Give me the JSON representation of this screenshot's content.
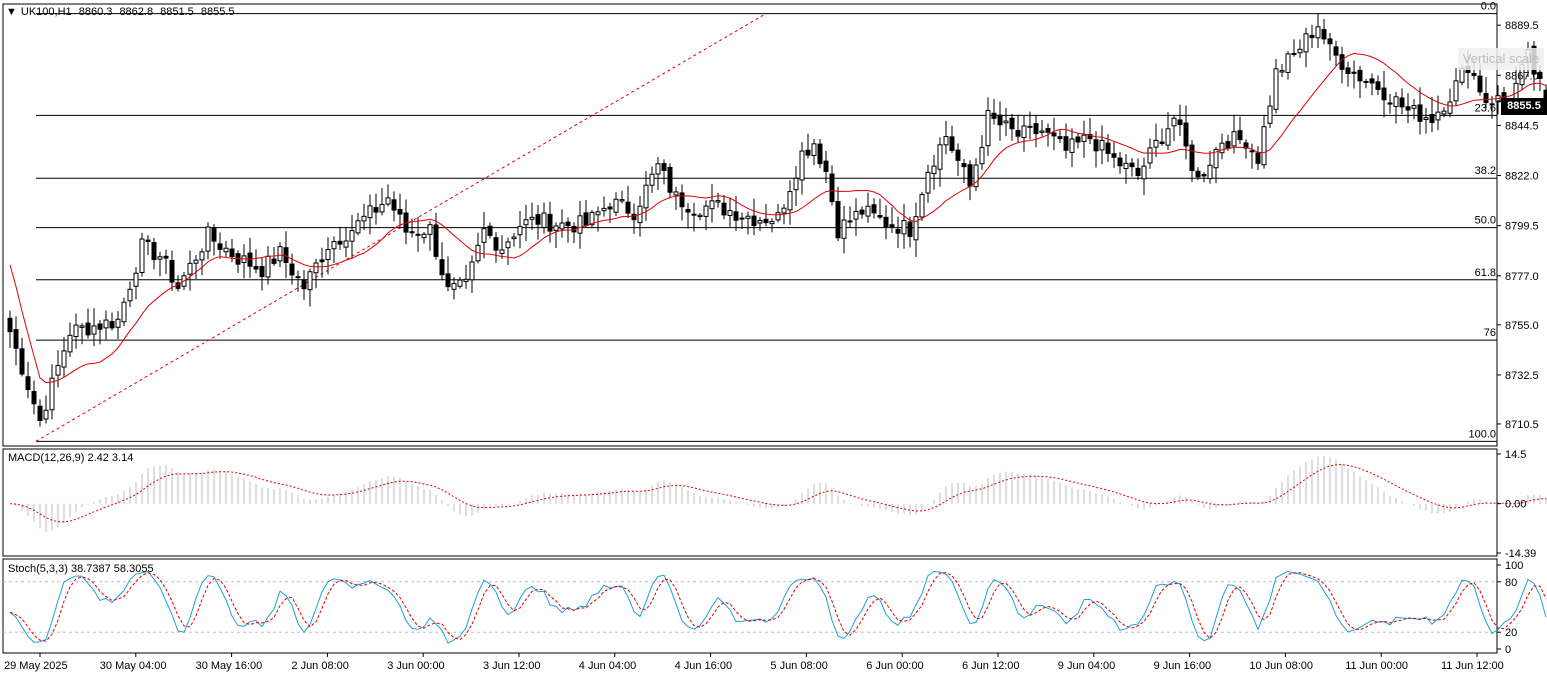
{
  "main": {
    "symbol": "UK100,H1",
    "ohlc": [
      "8860.3",
      "8862.8",
      "8851.5",
      "8855.5"
    ],
    "last_price": "8855.5",
    "vertical_scale_tip": "Vertical scale",
    "price_axis": [
      "8889.5",
      "8867.0",
      "8844.5",
      "8822.0",
      "8799.5",
      "8777.0",
      "8755.0",
      "8732.5",
      "8710.5"
    ],
    "fib_levels": [
      {
        "label": "0.0",
        "price": 8894.7
      },
      {
        "label": "23.6",
        "price": 8849.0
      },
      {
        "label": "38.2",
        "price": 8820.8
      },
      {
        "label": "50.0",
        "price": 8798.6
      },
      {
        "label": "61.8",
        "price": 8775.2
      },
      {
        "label": "76",
        "price": 8748.1
      },
      {
        "label": "100.0",
        "price": 8702.7
      }
    ]
  },
  "macd": {
    "label": "MACD(12,26,9) 2.42 3.14",
    "axis": [
      "14.5",
      "0.00",
      "-14.39"
    ]
  },
  "stoch": {
    "label": "Stoch(5,3,3) 38.7387 58.3055",
    "axis": [
      "100",
      "80",
      "20",
      "0"
    ]
  },
  "time_axis": [
    "29 May 2025",
    "30 May 04:00",
    "30 May 16:00",
    "2 Jun 08:00",
    "3 Jun 00:00",
    "3 Jun 12:00",
    "4 Jun 04:00",
    "4 Jun 16:00",
    "5 Jun 08:00",
    "6 Jun 00:00",
    "6 Jun 12:00",
    "9 Jun 04:00",
    "9 Jun 16:00",
    "10 Jun 08:00",
    "11 Jun 00:00",
    "11 Jun 12:00"
  ],
  "colors": {
    "ma": "#e00000",
    "signal": "#e00000",
    "histogram": "#bdbdbd",
    "stoch_main": "#1ea0d8",
    "stoch_signal": "#e00000",
    "grid": "#000000"
  },
  "chart_data": {
    "type": "candlestick",
    "timeframe": "H1",
    "anchors": [
      {
        "t": 0,
        "p": 8752
      },
      {
        "t": 5,
        "p": 8712
      },
      {
        "t": 10,
        "p": 8752
      },
      {
        "t": 18,
        "p": 8757
      },
      {
        "t": 22,
        "p": 8790
      },
      {
        "t": 25,
        "p": 8786
      },
      {
        "t": 28,
        "p": 8772
      },
      {
        "t": 33,
        "p": 8795
      },
      {
        "t": 38,
        "p": 8785
      },
      {
        "t": 42,
        "p": 8780
      },
      {
        "t": 45,
        "p": 8787
      },
      {
        "t": 49,
        "p": 8772
      },
      {
        "t": 53,
        "p": 8791
      },
      {
        "t": 57,
        "p": 8798
      },
      {
        "t": 61,
        "p": 8807
      },
      {
        "t": 63,
        "p": 8812
      },
      {
        "t": 66,
        "p": 8797
      },
      {
        "t": 70,
        "p": 8798
      },
      {
        "t": 73,
        "p": 8770
      },
      {
        "t": 76,
        "p": 8772
      },
      {
        "t": 79,
        "p": 8797
      },
      {
        "t": 82,
        "p": 8790
      },
      {
        "t": 85,
        "p": 8800
      },
      {
        "t": 88,
        "p": 8802
      },
      {
        "t": 92,
        "p": 8800
      },
      {
        "t": 96,
        "p": 8800
      },
      {
        "t": 100,
        "p": 8810
      },
      {
        "t": 104,
        "p": 8806
      },
      {
        "t": 108,
        "p": 8826
      },
      {
        "t": 111,
        "p": 8812
      },
      {
        "t": 114,
        "p": 8808
      },
      {
        "t": 118,
        "p": 8808
      },
      {
        "t": 124,
        "p": 8803
      },
      {
        "t": 128,
        "p": 8803
      },
      {
        "t": 132,
        "p": 8832
      },
      {
        "t": 134,
        "p": 8837
      },
      {
        "t": 136,
        "p": 8824
      },
      {
        "t": 138,
        "p": 8798
      },
      {
        "t": 142,
        "p": 8806
      },
      {
        "t": 146,
        "p": 8801
      },
      {
        "t": 150,
        "p": 8798
      },
      {
        "t": 153,
        "p": 8825
      },
      {
        "t": 156,
        "p": 8840
      },
      {
        "t": 160,
        "p": 8817
      },
      {
        "t": 163,
        "p": 8848
      },
      {
        "t": 168,
        "p": 8840
      },
      {
        "t": 172,
        "p": 8842
      },
      {
        "t": 176,
        "p": 8833
      },
      {
        "t": 180,
        "p": 8839
      },
      {
        "t": 184,
        "p": 8829
      },
      {
        "t": 188,
        "p": 8822
      },
      {
        "t": 191,
        "p": 8836
      },
      {
        "t": 194,
        "p": 8848
      },
      {
        "t": 198,
        "p": 8820
      },
      {
        "t": 202,
        "p": 8838
      },
      {
        "t": 206,
        "p": 8838
      },
      {
        "t": 208,
        "p": 8830
      },
      {
        "t": 211,
        "p": 8868
      },
      {
        "t": 214,
        "p": 8876
      },
      {
        "t": 218,
        "p": 8890
      },
      {
        "t": 220,
        "p": 8878
      },
      {
        "t": 224,
        "p": 8868
      },
      {
        "t": 228,
        "p": 8862
      },
      {
        "t": 233,
        "p": 8851
      },
      {
        "t": 237,
        "p": 8848
      },
      {
        "t": 240,
        "p": 8858
      },
      {
        "t": 243,
        "p": 8872
      },
      {
        "t": 246,
        "p": 8856
      },
      {
        "t": 250,
        "p": 8856
      },
      {
        "t": 253,
        "p": 8875
      },
      {
        "t": 255,
        "p": 8862
      },
      {
        "t": 256,
        "p": 8855.5
      }
    ],
    "last_close": 8855.5,
    "ylim": [
      8700.6,
      8899.0
    ],
    "series": [
      {
        "name": "MA",
        "values_note": "moving average of closes"
      },
      {
        "name": "MACD(12,26,9)"
      },
      {
        "name": "Stoch(5,3,3)"
      }
    ]
  }
}
